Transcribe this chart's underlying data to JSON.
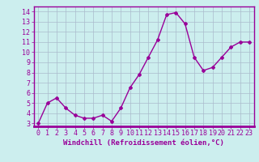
{
  "x": [
    0,
    1,
    2,
    3,
    4,
    5,
    6,
    7,
    8,
    9,
    10,
    11,
    12,
    13,
    14,
    15,
    16,
    17,
    18,
    19,
    20,
    21,
    22,
    23
  ],
  "y": [
    3,
    5,
    5.5,
    4.5,
    3.8,
    3.5,
    3.5,
    3.8,
    3.2,
    4.5,
    6.5,
    7.8,
    9.5,
    11.2,
    13.7,
    13.9,
    12.8,
    9.5,
    8.2,
    8.5,
    9.5,
    10.5,
    11.0,
    11.0
  ],
  "line_color": "#990099",
  "marker": "D",
  "marker_size": 2,
  "bg_color": "#cceeee",
  "grid_color": "#aabbcc",
  "xlabel": "Windchill (Refroidissement éolien,°C)",
  "xlabel_color": "#990099",
  "xlabel_fontsize": 6.5,
  "ylabel_ticks": [
    3,
    4,
    5,
    6,
    7,
    8,
    9,
    10,
    11,
    12,
    13,
    14
  ],
  "xlim": [
    -0.5,
    23.5
  ],
  "ylim": [
    2.7,
    14.5
  ],
  "tick_color": "#990099",
  "tick_fontsize": 6,
  "spine_color": "#990099",
  "line_width": 1.0,
  "fig_width": 3.2,
  "fig_height": 2.0,
  "dpi": 100
}
